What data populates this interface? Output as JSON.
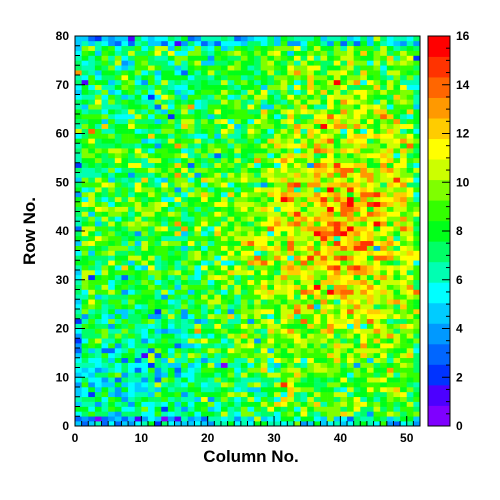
{
  "chart_data": {
    "type": "heatmap",
    "title": "",
    "xlabel": "Column No.",
    "ylabel": "Row No.",
    "xlim": [
      0,
      52
    ],
    "ylim": [
      0,
      80
    ],
    "x_bins": 52,
    "y_bins": 80,
    "x_ticks": [
      "0",
      "10",
      "20",
      "30",
      "40",
      "50"
    ],
    "y_ticks": [
      "0",
      "10",
      "20",
      "30",
      "40",
      "50",
      "60",
      "70",
      "80"
    ],
    "colorbar": {
      "min": 0,
      "max": 16,
      "ticks": [
        "0",
        "2",
        "4",
        "6",
        "8",
        "10",
        "12",
        "14",
        "16"
      ],
      "colors": [
        "#7f00ff",
        "#4c00ff",
        "#0033ff",
        "#0066ff",
        "#0099ff",
        "#00ccff",
        "#00ffff",
        "#00ffb2",
        "#00ff66",
        "#00ff19",
        "#33ff00",
        "#7fff00",
        "#ccff00",
        "#ffff00",
        "#ffcc00",
        "#ff9900",
        "#ff6600",
        "#ff3300",
        "#ff0000"
      ]
    },
    "grid": false,
    "value_pattern": "Per-cell counts mostly 6–11; higher (11–15) in columns ~28–50 between rows ~20–60; lower (3–7) in columns ~0–20 below row ~25 and along the top/bottom edges."
  }
}
